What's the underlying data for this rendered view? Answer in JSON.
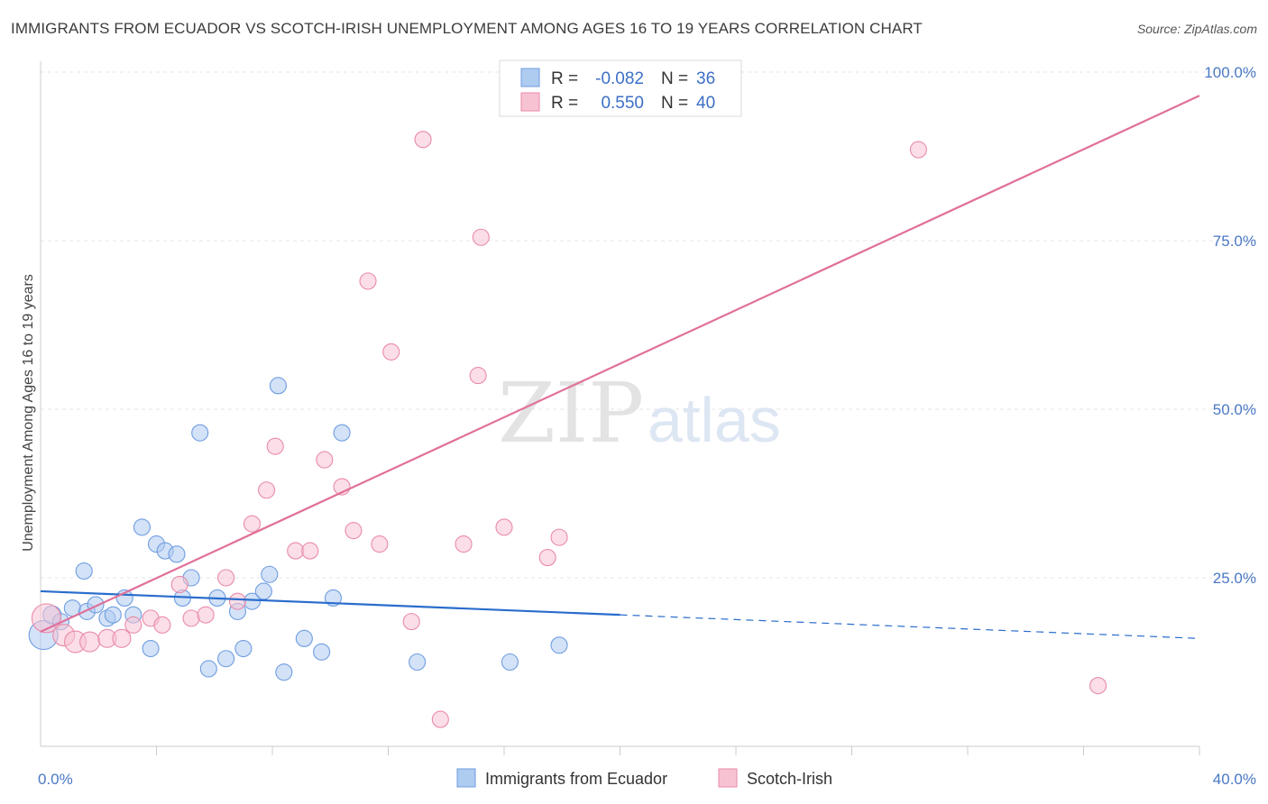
{
  "header": {
    "title": "IMMIGRANTS FROM ECUADOR VS SCOTCH-IRISH UNEMPLOYMENT AMONG AGES 16 TO 19 YEARS CORRELATION CHART",
    "source": "Source: ZipAtlas.com"
  },
  "watermark": {
    "zip": "ZIP",
    "atlas": "atlas"
  },
  "legend": {
    "rows": [
      {
        "r_label": "R =",
        "r_value": "-0.082",
        "n_label": "N =",
        "n_value": "36"
      },
      {
        "r_label": "R =",
        "r_value": "0.550",
        "n_label": "N =",
        "n_value": "40"
      }
    ]
  },
  "bottom_legend": {
    "items": [
      {
        "label": "Immigrants from Ecuador"
      },
      {
        "label": "Scotch-Irish"
      }
    ]
  },
  "chart_data": {
    "type": "scatter",
    "ylabel": "Unemployment Among Ages 16 to 19 years",
    "xlim": [
      0,
      40
    ],
    "ylim": [
      0,
      100
    ],
    "x_tick_labels": {
      "left": "0.0%",
      "right": "40.0%"
    },
    "y_tick_labels": [
      {
        "value": 25,
        "label": "25.0%"
      },
      {
        "value": 50,
        "label": "50.0%"
      },
      {
        "value": 75,
        "label": "75.0%"
      },
      {
        "value": 100,
        "label": "100.0%"
      }
    ],
    "colors": {
      "ecuador_fill": "#aecbf0",
      "ecuador_stroke": "#6f9de0",
      "ecuador_line": "#2a6dcc",
      "scotch_fill": "#f7c3d3",
      "scotch_stroke": "#e98aa9",
      "scotch_line": "#e0709a"
    },
    "series": [
      {
        "name": "Immigrants from Ecuador",
        "r": -0.082,
        "n": 36,
        "trend": {
          "x0": 0,
          "y0": 23.0,
          "x1": 20,
          "y1": 19.5,
          "dash_to": 40,
          "dash_y": 16.0
        },
        "points": [
          {
            "x": 0.1,
            "y": 16.5,
            "s": 16
          },
          {
            "x": 0.4,
            "y": 19.5,
            "s": 10
          },
          {
            "x": 0.7,
            "y": 18.5,
            "s": 9
          },
          {
            "x": 1.1,
            "y": 20.5,
            "s": 9
          },
          {
            "x": 1.5,
            "y": 26.0,
            "s": 9
          },
          {
            "x": 1.6,
            "y": 20.0,
            "s": 9
          },
          {
            "x": 1.9,
            "y": 21.0,
            "s": 9
          },
          {
            "x": 2.3,
            "y": 19.0,
            "s": 9
          },
          {
            "x": 2.5,
            "y": 19.5,
            "s": 9
          },
          {
            "x": 2.9,
            "y": 22.0,
            "s": 9
          },
          {
            "x": 3.2,
            "y": 19.5,
            "s": 9
          },
          {
            "x": 3.5,
            "y": 32.5,
            "s": 9
          },
          {
            "x": 3.8,
            "y": 14.5,
            "s": 9
          },
          {
            "x": 4.0,
            "y": 30.0,
            "s": 9
          },
          {
            "x": 4.3,
            "y": 29.0,
            "s": 9
          },
          {
            "x": 4.7,
            "y": 28.5,
            "s": 9
          },
          {
            "x": 4.9,
            "y": 22.0,
            "s": 9
          },
          {
            "x": 5.2,
            "y": 25.0,
            "s": 9
          },
          {
            "x": 5.5,
            "y": 46.5,
            "s": 9
          },
          {
            "x": 5.8,
            "y": 11.5,
            "s": 9
          },
          {
            "x": 6.1,
            "y": 22.0,
            "s": 9
          },
          {
            "x": 6.4,
            "y": 13.0,
            "s": 9
          },
          {
            "x": 6.8,
            "y": 20.0,
            "s": 9
          },
          {
            "x": 7.0,
            "y": 14.5,
            "s": 9
          },
          {
            "x": 7.3,
            "y": 21.5,
            "s": 9
          },
          {
            "x": 7.7,
            "y": 23.0,
            "s": 9
          },
          {
            "x": 7.9,
            "y": 25.5,
            "s": 9
          },
          {
            "x": 8.2,
            "y": 53.5,
            "s": 9
          },
          {
            "x": 8.4,
            "y": 11.0,
            "s": 9
          },
          {
            "x": 9.1,
            "y": 16.0,
            "s": 9
          },
          {
            "x": 9.7,
            "y": 14.0,
            "s": 9
          },
          {
            "x": 10.1,
            "y": 22.0,
            "s": 9
          },
          {
            "x": 10.4,
            "y": 46.5,
            "s": 9
          },
          {
            "x": 13.0,
            "y": 12.5,
            "s": 9
          },
          {
            "x": 16.2,
            "y": 12.5,
            "s": 9
          },
          {
            "x": 17.9,
            "y": 15.0,
            "s": 9
          }
        ]
      },
      {
        "name": "Scotch-Irish",
        "r": 0.55,
        "n": 40,
        "trend": {
          "x0": 0,
          "y0": 17.0,
          "x1": 40,
          "y1": 96.5
        },
        "points": [
          {
            "x": 0.2,
            "y": 19.0,
            "s": 16
          },
          {
            "x": 0.8,
            "y": 16.5,
            "s": 12
          },
          {
            "x": 1.2,
            "y": 15.5,
            "s": 12
          },
          {
            "x": 1.7,
            "y": 15.5,
            "s": 11
          },
          {
            "x": 2.3,
            "y": 16.0,
            "s": 10
          },
          {
            "x": 2.8,
            "y": 16.0,
            "s": 10
          },
          {
            "x": 3.2,
            "y": 18.0,
            "s": 9
          },
          {
            "x": 3.8,
            "y": 19.0,
            "s": 9
          },
          {
            "x": 4.2,
            "y": 18.0,
            "s": 9
          },
          {
            "x": 4.8,
            "y": 24.0,
            "s": 9
          },
          {
            "x": 5.2,
            "y": 19.0,
            "s": 9
          },
          {
            "x": 5.7,
            "y": 19.5,
            "s": 9
          },
          {
            "x": 6.4,
            "y": 25.0,
            "s": 9
          },
          {
            "x": 6.8,
            "y": 21.5,
            "s": 9
          },
          {
            "x": 7.3,
            "y": 33.0,
            "s": 9
          },
          {
            "x": 7.8,
            "y": 38.0,
            "s": 9
          },
          {
            "x": 8.1,
            "y": 44.5,
            "s": 9
          },
          {
            "x": 8.8,
            "y": 29.0,
            "s": 9
          },
          {
            "x": 9.3,
            "y": 29.0,
            "s": 9
          },
          {
            "x": 9.8,
            "y": 42.5,
            "s": 9
          },
          {
            "x": 10.4,
            "y": 38.5,
            "s": 9
          },
          {
            "x": 10.8,
            "y": 32.0,
            "s": 9
          },
          {
            "x": 11.3,
            "y": 69.0,
            "s": 9
          },
          {
            "x": 11.7,
            "y": 30.0,
            "s": 9
          },
          {
            "x": 12.1,
            "y": 58.5,
            "s": 9
          },
          {
            "x": 12.8,
            "y": 18.5,
            "s": 9
          },
          {
            "x": 13.2,
            "y": 90.0,
            "s": 9
          },
          {
            "x": 13.8,
            "y": 4.0,
            "s": 9
          },
          {
            "x": 14.6,
            "y": 30.0,
            "s": 9
          },
          {
            "x": 15.1,
            "y": 55.0,
            "s": 9
          },
          {
            "x": 15.2,
            "y": 75.5,
            "s": 9
          },
          {
            "x": 16.0,
            "y": 32.5,
            "s": 9
          },
          {
            "x": 17.5,
            "y": 28.0,
            "s": 9
          },
          {
            "x": 17.9,
            "y": 31.0,
            "s": 9
          },
          {
            "x": 18.8,
            "y": 99.5,
            "s": 9
          },
          {
            "x": 19.4,
            "y": 99.5,
            "s": 9
          },
          {
            "x": 21.3,
            "y": 99.5,
            "s": 9
          },
          {
            "x": 22.1,
            "y": 99.5,
            "s": 9
          },
          {
            "x": 30.3,
            "y": 88.5,
            "s": 9
          },
          {
            "x": 36.5,
            "y": 9.0,
            "s": 9
          }
        ]
      }
    ]
  }
}
